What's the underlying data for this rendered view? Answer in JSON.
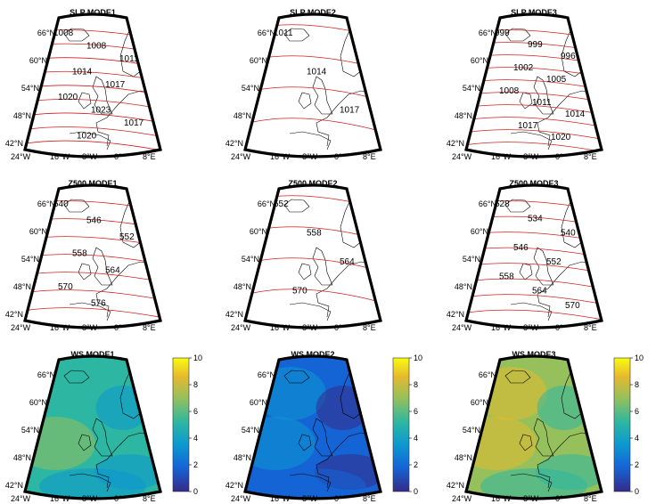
{
  "chart_data": [
    {
      "type": "contour",
      "title": "SLP MODE1",
      "lat_ticks": [
        "66°N",
        "60°N",
        "54°N",
        "48°N",
        "42°N"
      ],
      "lon_ticks": [
        "24°W",
        "16°W",
        "8°W",
        "0°",
        "8°E"
      ],
      "contour_labels": [
        "1008",
        "1008",
        "1011",
        "1014",
        "1017",
        "1020",
        "1023",
        "1017",
        "1020"
      ]
    },
    {
      "type": "contour",
      "title": "SLP MODE2",
      "lat_ticks": [
        "66°N",
        "60°N",
        "54°N",
        "48°N",
        "42°N"
      ],
      "lon_ticks": [
        "24°W",
        "16°W",
        "8°W",
        "0°",
        "8°E"
      ],
      "contour_labels": [
        "1011",
        "1014",
        "1017"
      ]
    },
    {
      "type": "contour",
      "title": "SLP MODE3",
      "lat_ticks": [
        "66°N",
        "60°N",
        "54°N",
        "48°N",
        "42°N"
      ],
      "lon_ticks": [
        "24°W",
        "16°W",
        "8°W",
        "0°",
        "8°E"
      ],
      "contour_labels": [
        "999",
        "999",
        "996",
        "1002",
        "1005",
        "1008",
        "1011",
        "1014",
        "1017",
        "1020"
      ]
    },
    {
      "type": "contour",
      "title": "Z500 MODE1",
      "lat_ticks": [
        "66°N",
        "60°N",
        "54°N",
        "48°N",
        "42°N"
      ],
      "lon_ticks": [
        "24°W",
        "16°W",
        "8°W",
        "0°",
        "8°E"
      ],
      "contour_labels": [
        "540",
        "546",
        "552",
        "558",
        "564",
        "570",
        "576"
      ]
    },
    {
      "type": "contour",
      "title": "Z500 MODE2",
      "lat_ticks": [
        "66°N",
        "60°N",
        "54°N",
        "48°N",
        "42°N"
      ],
      "lon_ticks": [
        "24°W",
        "16°W",
        "8°W",
        "0°",
        "8°E"
      ],
      "contour_labels": [
        "552",
        "558",
        "564",
        "570"
      ]
    },
    {
      "type": "contour",
      "title": "Z500 MODE3",
      "lat_ticks": [
        "66°N",
        "60°N",
        "54°N",
        "48°N",
        "42°N"
      ],
      "lon_ticks": [
        "24°W",
        "16°W",
        "8°W",
        "0°",
        "8°E"
      ],
      "contour_labels": [
        "528",
        "534",
        "540",
        "546",
        "552",
        "558",
        "564",
        "570"
      ]
    },
    {
      "type": "heatmap",
      "title": "WS MODE1",
      "lat_ticks": [
        "66°N",
        "60°N",
        "54°N",
        "48°N",
        "42°N"
      ],
      "lon_ticks": [
        "24°W",
        "16°W",
        "8°W",
        "0°",
        "8°E"
      ],
      "colorbar_ticks": [
        "10",
        "8",
        "6",
        "4",
        "2",
        "0"
      ],
      "colorbar_range": [
        0,
        10
      ],
      "field_level": 0.45
    },
    {
      "type": "heatmap",
      "title": "WS MODE2",
      "lat_ticks": [
        "66°N",
        "60°N",
        "54°N",
        "48°N",
        "42°N"
      ],
      "lon_ticks": [
        "24°W",
        "16°W",
        "8°W",
        "0°",
        "8°E"
      ],
      "colorbar_ticks": [
        "10",
        "8",
        "6",
        "4",
        "2",
        "0"
      ],
      "colorbar_range": [
        0,
        10
      ],
      "field_level": 0.2
    },
    {
      "type": "heatmap",
      "title": "WS MODE3",
      "lat_ticks": [
        "66°N",
        "60°N",
        "54°N",
        "48°N",
        "42°N"
      ],
      "lon_ticks": [
        "24°W",
        "16°W",
        "8°W",
        "0°",
        "8°E"
      ],
      "colorbar_ticks": [
        "10",
        "8",
        "6",
        "4",
        "2",
        "0"
      ],
      "colorbar_range": [
        0,
        10
      ],
      "field_level": 0.65
    }
  ],
  "colors": {
    "contour": "#d02020",
    "coast": "#000000",
    "colormap": [
      "#352a87",
      "#1564d6",
      "#0c98d0",
      "#2db7a2",
      "#96c05b",
      "#e6b92f",
      "#f9fb0e"
    ]
  }
}
